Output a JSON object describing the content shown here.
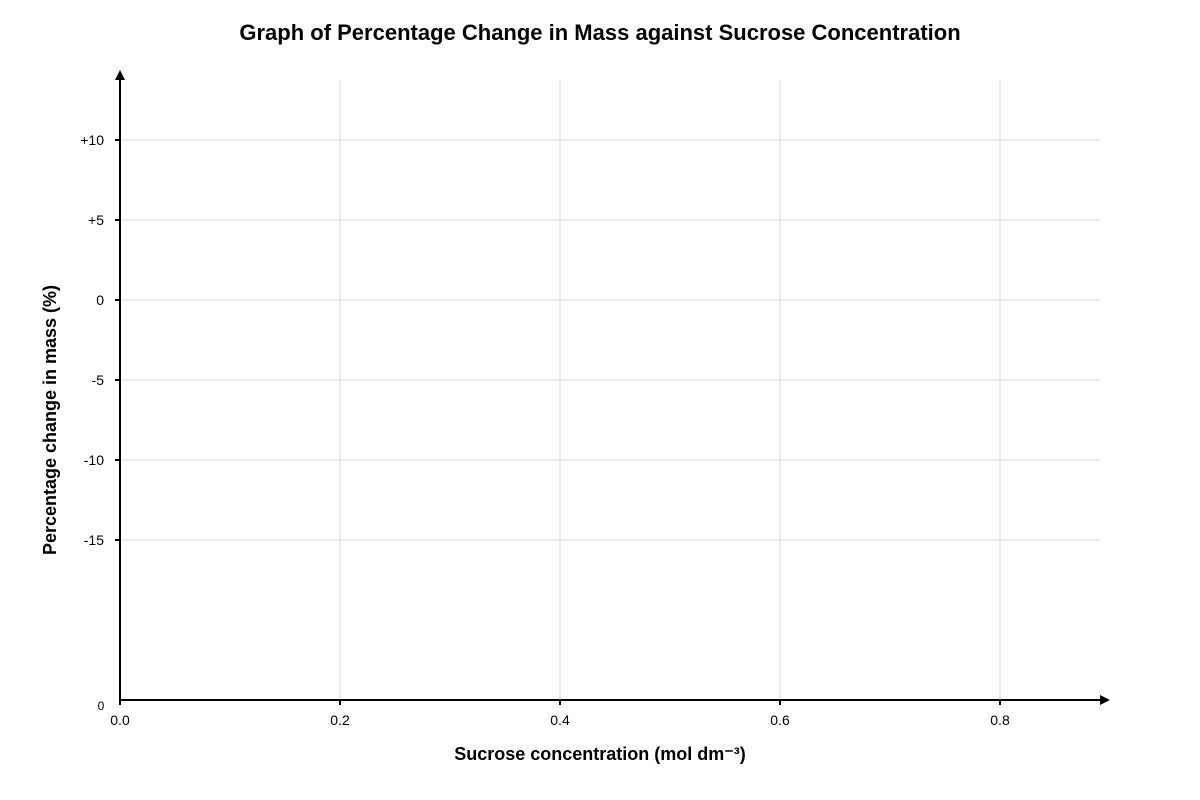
{
  "chart_data": {
    "type": "line",
    "title": "Graph of Percentage Change in Mass against Sucrose Concentration",
    "xlabel": "Sucrose concentration (mol dm⁻³)",
    "ylabel": "Percentage change in mass (%)",
    "x_ticks": [
      0.0,
      0.2,
      0.4,
      0.6,
      0.8
    ],
    "x_tick_labels": [
      "0.0",
      "0.2",
      "0.4",
      "0.6",
      "0.8"
    ],
    "xlim": [
      0.0,
      0.88
    ],
    "y_ticks": [
      10,
      5,
      0,
      -5,
      -10,
      -15
    ],
    "y_tick_labels": [
      "+10",
      "+5",
      "0",
      "-5",
      "-10",
      "-15"
    ],
    "ylim": [
      -15,
      10
    ],
    "origin_label": "0",
    "grid": true,
    "series": [],
    "colors": {
      "axis": "#000000",
      "grid": "#d9d9d9"
    }
  }
}
